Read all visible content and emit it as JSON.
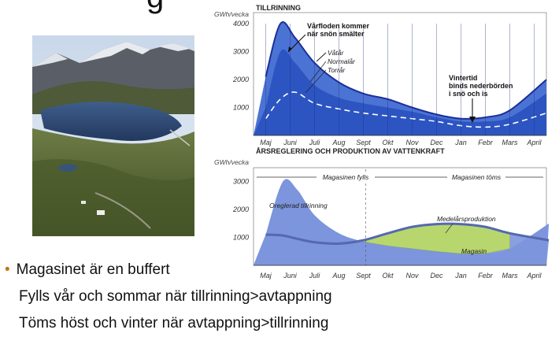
{
  "slide": {
    "title_fragment": "g",
    "bullet_main": "Magasinet är en buffert",
    "bullet_sub_1": "Fylls vår och sommar när tillrinning>avtappning",
    "bullet_sub_2": "Töms höst och vinter när avtappning>tillrinning",
    "accent_color": "#c8761c"
  },
  "chart_data": [
    {
      "type": "area",
      "title": "TILLRINNING",
      "ylabel": "GWh/vecka",
      "yticks": [
        "4000",
        "3000",
        "2000",
        "1000"
      ],
      "ylim": [
        0,
        4400
      ],
      "categories": [
        "Maj",
        "Juni",
        "Juli",
        "Aug",
        "Sept",
        "Okt",
        "Nov",
        "Dec",
        "Jan",
        "Febr",
        "Mars",
        "April"
      ],
      "x": [
        0,
        0.6,
        1.2,
        2,
        3,
        4,
        5,
        6,
        7,
        8,
        9,
        10,
        11.5
      ],
      "series": [
        {
          "name": "Våtår",
          "values": [
            2100,
            4000,
            3500,
            2600,
            1900,
            1500,
            1300,
            1000,
            750,
            600,
            650,
            900,
            2000
          ]
        },
        {
          "name": "Normalår",
          "values": [
            1000,
            3000,
            2600,
            1800,
            1350,
            1150,
            1000,
            850,
            650,
            500,
            500,
            650,
            1500
          ]
        },
        {
          "name": "Torrår",
          "values": [
            600,
            1300,
            1550,
            1150,
            950,
            800,
            700,
            600,
            500,
            350,
            300,
            400,
            800
          ]
        }
      ],
      "annotations": [
        {
          "text": "Vårfloden kommer",
          "text2": "när snön smälter"
        },
        {
          "text": "Vintertid",
          "text2": "binds nederbörden",
          "text3": "i snö och is"
        }
      ],
      "colors": {
        "wet": "#4b73d4",
        "normal": "#2c55c2",
        "navy": "#1c2f9a"
      }
    },
    {
      "type": "area",
      "title": "ÅRSREGLERING OCH PRODUKTION AV VATTENKRAFT",
      "ylabel": "GWh/vecka",
      "yticks": [
        "3000",
        "2000",
        "1000"
      ],
      "ylim": [
        0,
        3500
      ],
      "categories": [
        "Maj",
        "Juni",
        "Juli",
        "Aug",
        "Sept",
        "Okt",
        "Nov",
        "Dec",
        "Jan",
        "Febr",
        "Mars",
        "April"
      ],
      "x": [
        0,
        0.7,
        1.3,
        2,
        3,
        4,
        5,
        6,
        7,
        8,
        9,
        10,
        11.6
      ],
      "series": [
        {
          "name": "Oreglerad tillrinning",
          "values": [
            1100,
            3000,
            2700,
            1800,
            1150,
            850,
            700,
            600,
            500,
            420,
            420,
            600,
            1500
          ]
        },
        {
          "name": "Medelårsproduktion",
          "values": [
            1100,
            1070,
            950,
            830,
            780,
            900,
            1150,
            1380,
            1480,
            1480,
            1380,
            1150,
            900
          ]
        }
      ],
      "phases": [
        {
          "label": "Magasinen fylls"
        },
        {
          "label": "Magasinen töms"
        }
      ],
      "annotations": [
        {
          "text": "Magasin"
        }
      ],
      "colors": {
        "fill": "#7c95dc",
        "prod": "#5568b0",
        "storage": "#b8d66e"
      }
    }
  ]
}
